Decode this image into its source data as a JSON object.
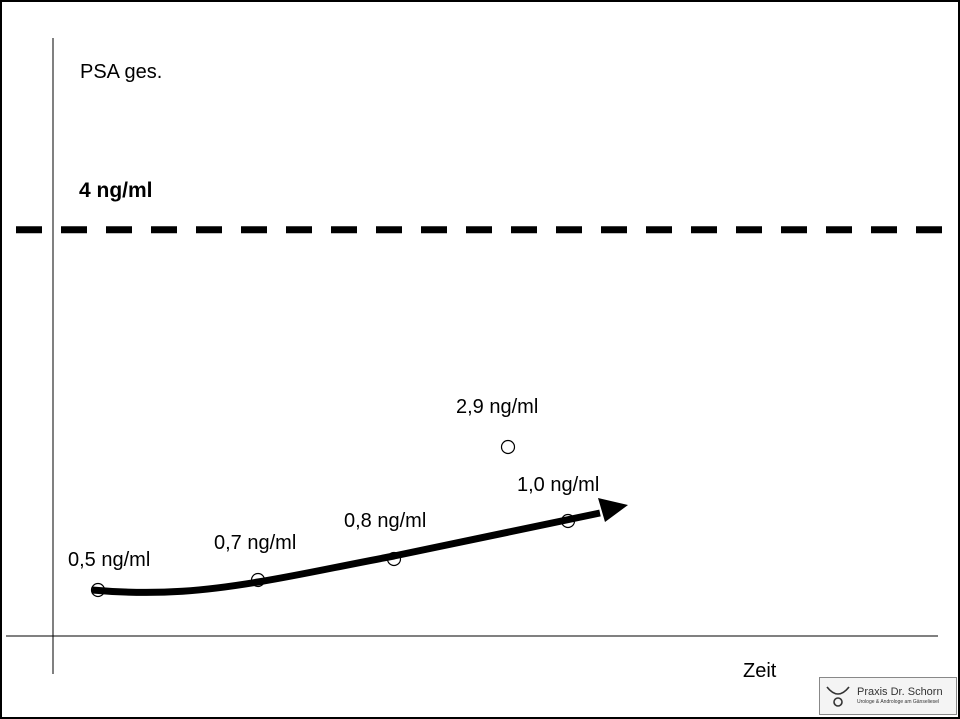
{
  "chart_data": {
    "type": "scatter",
    "ylabel": "PSA ges.",
    "xlabel": "Zeit",
    "threshold": {
      "value": 4,
      "label": "4 ng/ml",
      "style": "dashed"
    },
    "points": [
      {
        "x": 1,
        "y": 0.5,
        "label": "0,5 ng/ml"
      },
      {
        "x": 2,
        "y": 0.7,
        "label": "0,7 ng/ml"
      },
      {
        "x": 3,
        "y": 0.8,
        "label": "0,8 ng/ml"
      },
      {
        "x": 4,
        "y": 2.9,
        "label": "2,9 ng/ml"
      },
      {
        "x": 5,
        "y": 1.0,
        "label": "1,0 ng/ml"
      }
    ],
    "trend_arrow": true,
    "ylim": [
      0,
      5.5
    ],
    "grid": false
  },
  "logo": {
    "name": "Praxis Dr. Schorn",
    "subtitle": "Urologe & Androloge am Gänseliesel"
  }
}
